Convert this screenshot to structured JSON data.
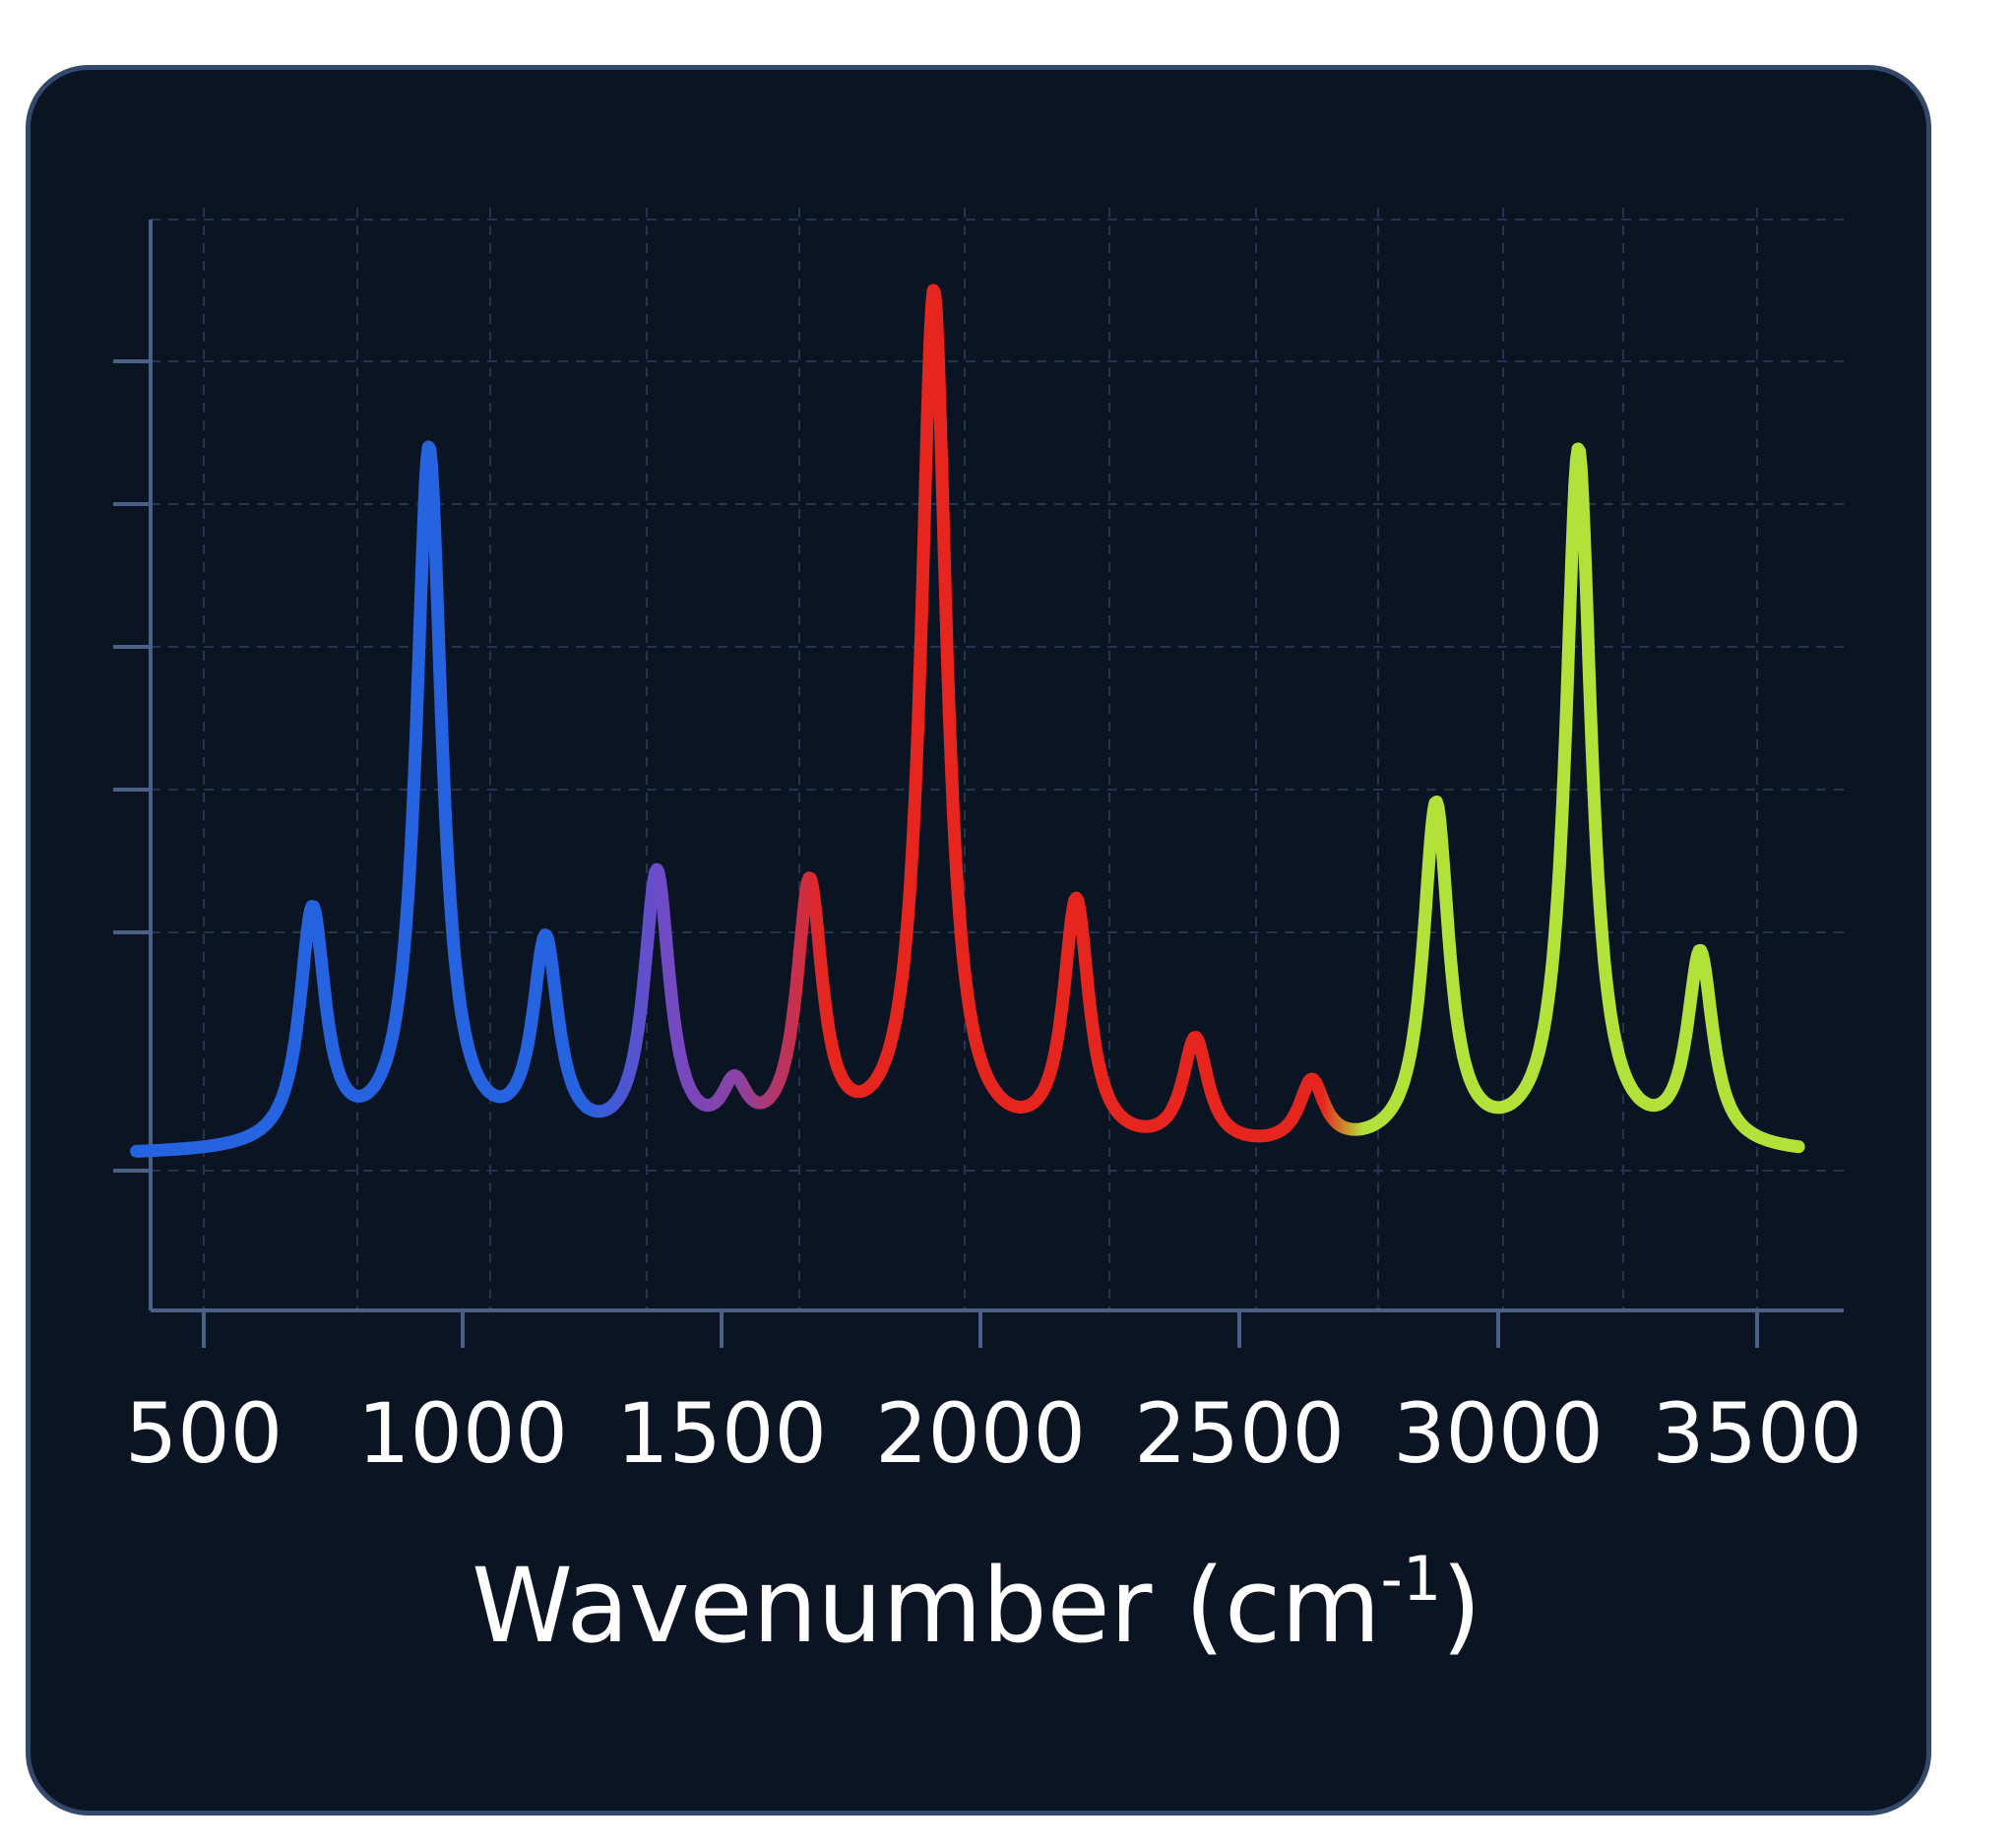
{
  "chart_data": {
    "type": "line",
    "title": "",
    "xlabel": "Wavenumber (cm",
    "xlabel_superscript": "-1",
    "xlabel_close": ")",
    "ylabel": "",
    "x_ticks": [
      500,
      1000,
      1500,
      2000,
      2500,
      3000,
      3500
    ],
    "xlim": [
      350,
      3600
    ],
    "ylim": [
      0,
      7.5
    ],
    "grid": true,
    "legend": "none",
    "baseline": 0.1,
    "peaks": [
      {
        "x": 710,
        "y": 1.75
      },
      {
        "x": 935,
        "y": 5.0
      },
      {
        "x": 1160,
        "y": 1.5
      },
      {
        "x": 1375,
        "y": 2.0
      },
      {
        "x": 1525,
        "y": 0.45
      },
      {
        "x": 1670,
        "y": 1.9
      },
      {
        "x": 1910,
        "y": 6.1
      },
      {
        "x": 2185,
        "y": 1.8
      },
      {
        "x": 2415,
        "y": 0.85
      },
      {
        "x": 2640,
        "y": 0.55
      },
      {
        "x": 2880,
        "y": 2.5
      },
      {
        "x": 3155,
        "y": 5.0
      },
      {
        "x": 3390,
        "y": 1.45
      }
    ],
    "colors": {
      "blue": "#2563e0",
      "purple": "#6e4bc7",
      "red": "#e6261e",
      "green": "#b2e23a",
      "axis": "#4a6185",
      "grid": "#24344e"
    },
    "color_stops": [
      {
        "x": 350,
        "color": "#2563e0"
      },
      {
        "x": 1230,
        "color": "#2563e0"
      },
      {
        "x": 1380,
        "color": "#6e4bc7"
      },
      {
        "x": 1525,
        "color": "#8a43a6"
      },
      {
        "x": 1700,
        "color": "#e6261e"
      },
      {
        "x": 2660,
        "color": "#e6261e"
      },
      {
        "x": 2740,
        "color": "#b2e23a"
      },
      {
        "x": 3600,
        "color": "#b2e23a"
      }
    ]
  }
}
